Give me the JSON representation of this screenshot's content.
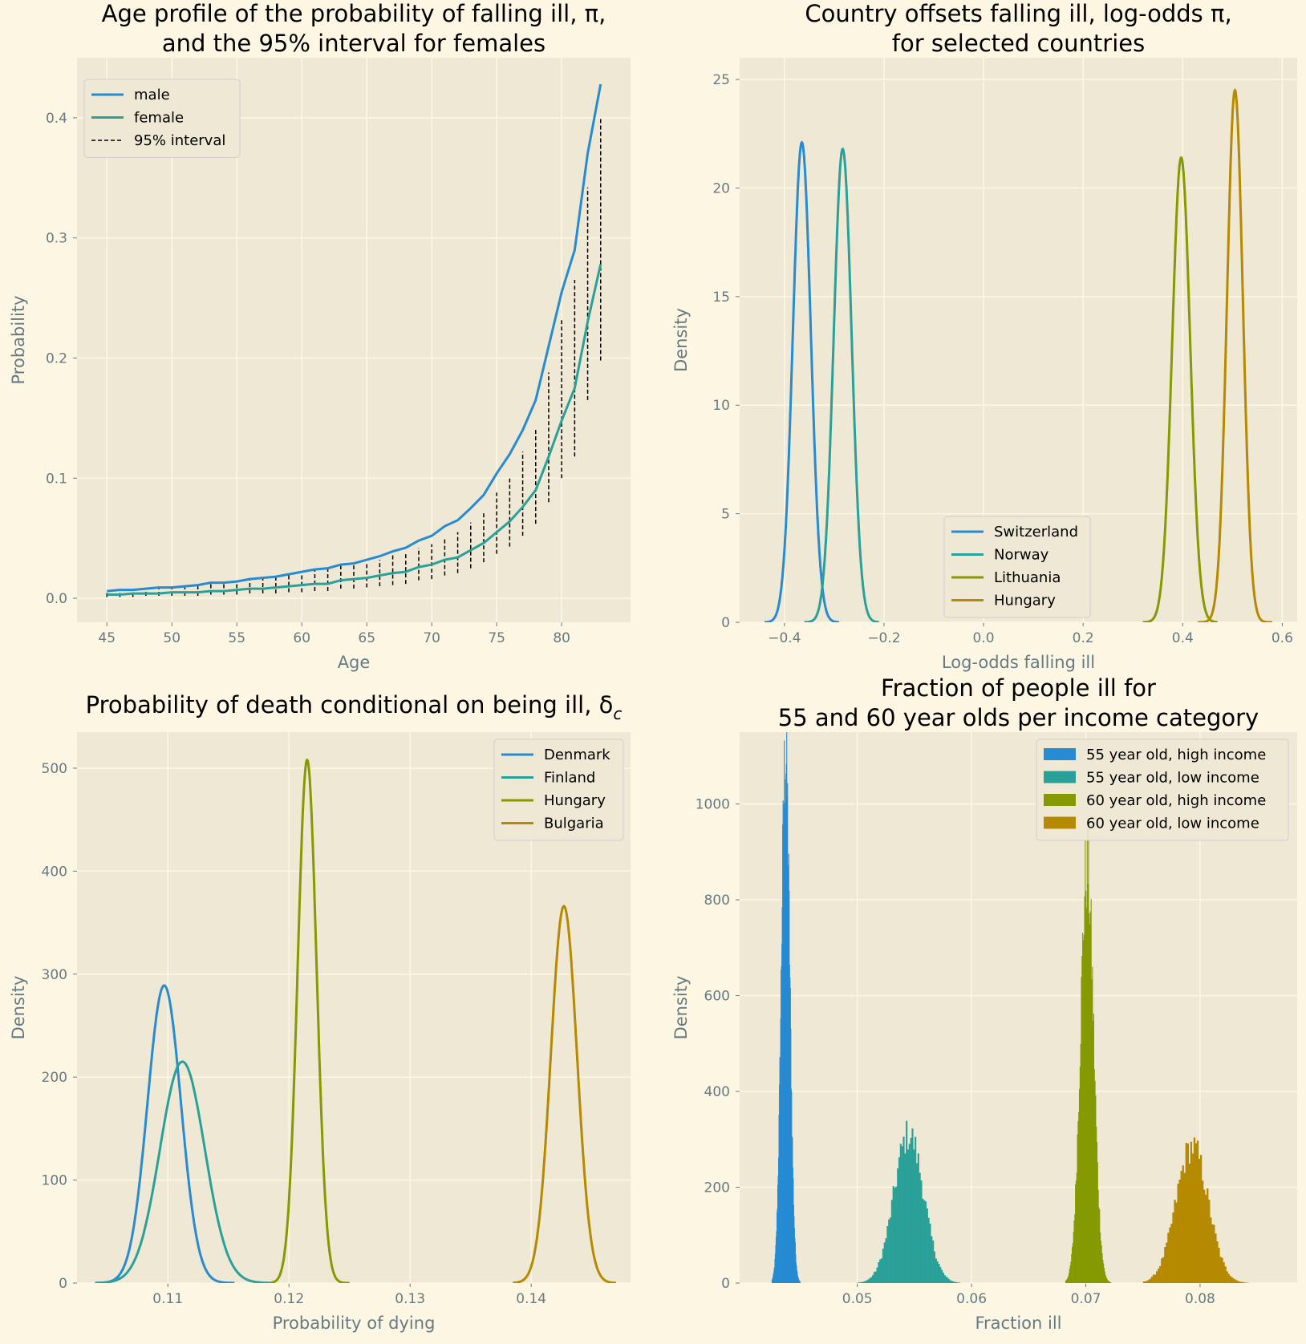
{
  "colors": {
    "background": "#fdf6e3",
    "axes_bg": "#eee8d5",
    "grid": "#fdf6e3",
    "text": "#657b83",
    "blue": "#268bd2",
    "teal": "#2aa198",
    "olive": "#859900",
    "gold": "#b58900",
    "black": "#000000"
  },
  "chart_data": [
    {
      "type": "line",
      "title": [
        "Age profile of the probability of falling ill, π,",
        "and the 95% interval for females"
      ],
      "xlabel": "Age",
      "ylabel": "Probability",
      "xlim": [
        42.7,
        85.3
      ],
      "ylim": [
        -0.02,
        0.45
      ],
      "xticks": [
        45,
        50,
        55,
        60,
        65,
        70,
        75,
        80
      ],
      "xtick_labels": [
        "45",
        "50",
        "55",
        "60",
        "65",
        "70",
        "75",
        "80"
      ],
      "yticks": [
        0.0,
        0.1,
        0.2,
        0.3,
        0.4
      ],
      "ytick_labels": [
        "0.0",
        "0.1",
        "0.2",
        "0.3",
        "0.4"
      ],
      "legend": [
        "male",
        "female",
        "95% interval"
      ],
      "legend_loc": "upper-left",
      "x": [
        45,
        46,
        47,
        48,
        49,
        50,
        51,
        52,
        53,
        54,
        55,
        56,
        57,
        58,
        59,
        60,
        61,
        62,
        63,
        64,
        65,
        66,
        67,
        68,
        69,
        70,
        71,
        72,
        73,
        74,
        75,
        76,
        77,
        78,
        79,
        80,
        81,
        82,
        83
      ],
      "series": [
        {
          "name": "male",
          "color": "blue",
          "values": [
            0.006,
            0.007,
            0.007,
            0.008,
            0.009,
            0.009,
            0.01,
            0.011,
            0.013,
            0.013,
            0.014,
            0.016,
            0.017,
            0.018,
            0.02,
            0.022,
            0.024,
            0.025,
            0.028,
            0.029,
            0.032,
            0.035,
            0.039,
            0.042,
            0.048,
            0.052,
            0.06,
            0.065,
            0.075,
            0.086,
            0.104,
            0.12,
            0.14,
            0.165,
            0.21,
            0.255,
            0.29,
            0.37,
            0.428
          ]
        },
        {
          "name": "female",
          "color": "teal",
          "values": [
            0.003,
            0.003,
            0.004,
            0.004,
            0.004,
            0.005,
            0.005,
            0.005,
            0.006,
            0.006,
            0.007,
            0.008,
            0.008,
            0.009,
            0.01,
            0.011,
            0.012,
            0.012,
            0.015,
            0.016,
            0.017,
            0.019,
            0.021,
            0.022,
            0.026,
            0.028,
            0.032,
            0.034,
            0.04,
            0.046,
            0.055,
            0.064,
            0.076,
            0.09,
            0.118,
            0.148,
            0.175,
            0.23,
            0.278
          ]
        }
      ],
      "interval": {
        "name": "95% interval",
        "lower": [
          0.001,
          0.001,
          0.001,
          0.002,
          0.002,
          0.002,
          0.002,
          0.002,
          0.003,
          0.003,
          0.003,
          0.004,
          0.004,
          0.004,
          0.005,
          0.005,
          0.006,
          0.006,
          0.008,
          0.008,
          0.009,
          0.01,
          0.011,
          0.012,
          0.015,
          0.016,
          0.019,
          0.021,
          0.025,
          0.03,
          0.037,
          0.043,
          0.052,
          0.062,
          0.08,
          0.1,
          0.118,
          0.165,
          0.198
        ],
        "upper": [
          0.006,
          0.007,
          0.007,
          0.008,
          0.009,
          0.009,
          0.01,
          0.011,
          0.013,
          0.013,
          0.014,
          0.016,
          0.017,
          0.018,
          0.02,
          0.022,
          0.024,
          0.025,
          0.027,
          0.028,
          0.03,
          0.032,
          0.036,
          0.038,
          0.042,
          0.045,
          0.05,
          0.055,
          0.063,
          0.071,
          0.088,
          0.1,
          0.122,
          0.142,
          0.188,
          0.232,
          0.265,
          0.342,
          0.4
        ]
      }
    },
    {
      "type": "line",
      "title": [
        "Country offsets falling ill, log-odds π,",
        "for selected countries"
      ],
      "xlabel": "Log-odds falling ill",
      "ylabel": "Density",
      "xlim": [
        -0.49,
        0.63
      ],
      "ylim": [
        0,
        26
      ],
      "xticks": [
        -0.4,
        -0.2,
        0.0,
        0.2,
        0.4,
        0.6
      ],
      "xtick_labels": [
        "−0.4",
        "−0.2",
        "0.0",
        "0.2",
        "0.4",
        "0.6"
      ],
      "yticks": [
        0,
        5,
        10,
        15,
        20,
        25
      ],
      "ytick_labels": [
        "0",
        "5",
        "10",
        "15",
        "20",
        "25"
      ],
      "legend": [
        "Switzerland",
        "Norway",
        "Lithuania",
        "Hungary"
      ],
      "legend_loc": "lower-center",
      "series": [
        {
          "name": "Switzerland",
          "color": "blue",
          "mean": -0.365,
          "sd": 0.018,
          "peak": 22.1,
          "range": [
            -0.44,
            -0.29
          ]
        },
        {
          "name": "Norway",
          "color": "teal",
          "mean": -0.283,
          "sd": 0.018,
          "peak": 21.8,
          "range": [
            -0.36,
            -0.21
          ]
        },
        {
          "name": "Lithuania",
          "color": "olive",
          "mean": 0.397,
          "sd": 0.018,
          "peak": 21.4,
          "range": [
            0.32,
            0.47
          ]
        },
        {
          "name": "Hungary",
          "color": "gold",
          "mean": 0.505,
          "sd": 0.016,
          "peak": 24.5,
          "range": [
            0.43,
            0.58
          ]
        }
      ]
    },
    {
      "type": "line",
      "title": [
        "Probability of death conditional on being ill, δ",
        "c"
      ],
      "xlabel": "Probability of dying",
      "ylabel": "Density",
      "xlim": [
        0.1025,
        0.1482
      ],
      "ylim": [
        0,
        535
      ],
      "xticks": [
        0.11,
        0.12,
        0.13,
        0.14
      ],
      "xtick_labels": [
        "0.11",
        "0.12",
        "0.13",
        "0.14"
      ],
      "yticks": [
        0,
        100,
        200,
        300,
        400,
        500
      ],
      "ytick_labels": [
        "0",
        "100",
        "200",
        "300",
        "400",
        "500"
      ],
      "legend": [
        "Denmark",
        "Finland",
        "Hungary",
        "Bulgaria"
      ],
      "legend_loc": "upper-right",
      "series": [
        {
          "name": "Denmark",
          "color": "blue",
          "mean": 0.1097,
          "sd": 0.00138,
          "peak": 289,
          "range": [
            0.104,
            0.1155
          ]
        },
        {
          "name": "Finland",
          "color": "teal",
          "mean": 0.1112,
          "sd": 0.00185,
          "peak": 215,
          "range": [
            0.104,
            0.1185
          ]
        },
        {
          "name": "Hungary",
          "color": "olive",
          "mean": 0.1215,
          "sd": 0.00078,
          "peak": 508,
          "range": [
            0.1185,
            0.125
          ]
        },
        {
          "name": "Bulgaria",
          "color": "gold",
          "mean": 0.1427,
          "sd": 0.00108,
          "peak": 366,
          "range": [
            0.1385,
            0.147
          ]
        }
      ]
    },
    {
      "type": "bar",
      "subtype": "histogram",
      "title": [
        "Fraction of people ill for",
        "55 and 60 year olds per income category"
      ],
      "xlabel": "Fraction ill",
      "ylabel": "Density",
      "xlim": [
        0.0397,
        0.0885
      ],
      "ylim": [
        0,
        1150
      ],
      "xticks": [
        0.05,
        0.06,
        0.07,
        0.08
      ],
      "xtick_labels": [
        "0.05",
        "0.06",
        "0.07",
        "0.08"
      ],
      "yticks": [
        0,
        200,
        400,
        600,
        800,
        1000
      ],
      "ytick_labels": [
        "0",
        "200",
        "400",
        "600",
        "800",
        "1000"
      ],
      "legend": [
        "55 year old, high income",
        "55 year old, low income",
        "60 year old, high income",
        "60 year old, low income"
      ],
      "legend_loc": "upper-right",
      "series": [
        {
          "name": "55 year old, high income",
          "color": "blue",
          "mean": 0.0437,
          "sd": 0.00037,
          "peak": 1100,
          "range": [
            0.0425,
            0.045
          ]
        },
        {
          "name": "55 year old, low income",
          "color": "teal",
          "mean": 0.0545,
          "sd": 0.0013,
          "peak": 310,
          "range": [
            0.05,
            0.059
          ]
        },
        {
          "name": "60 year old, high income",
          "color": "olive",
          "mean": 0.0701,
          "sd": 0.00058,
          "peak": 870,
          "range": [
            0.0682,
            0.0722
          ]
        },
        {
          "name": "60 year old, low income",
          "color": "gold",
          "mean": 0.0793,
          "sd": 0.0014,
          "peak": 285,
          "range": [
            0.075,
            0.085
          ]
        }
      ]
    }
  ]
}
